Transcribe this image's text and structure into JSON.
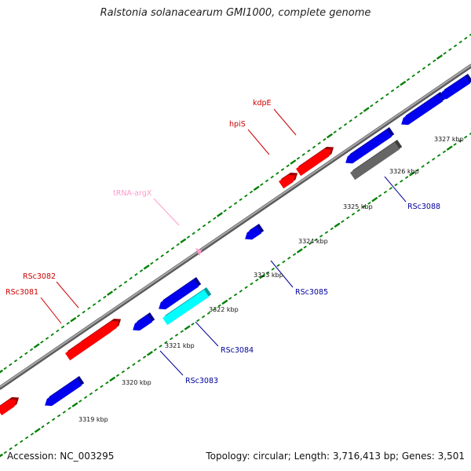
{
  "title": "Ralstonia solanacearum GMI1000, complete genome",
  "footer": {
    "accession": "Accession: NC_003295",
    "summary": "Topology: circular; Length: 3,716,413 bp; Genes: 3,501"
  },
  "colors": {
    "forward_gene": "#ff0000",
    "reverse_gene": "#0000ee",
    "highlight_gene": "#00ffff",
    "other_feature": "#666666",
    "trna": "#ff99cc",
    "backbone": "#888888",
    "dots": "#008000",
    "forward_label": "#cc0000",
    "reverse_label": "#000099"
  },
  "ticks": [
    "3319 kbp",
    "3320 kbp",
    "3321 kbp",
    "3322 kbp",
    "3323 kbp",
    "3324 kbp",
    "3325 kbp",
    "3326 kbp",
    "3327 kbp"
  ],
  "gene_labels": {
    "RSc3081": "RSc3081",
    "RSc3082": "RSc3082",
    "RSc3083": "RSc3083",
    "RSc3084": "RSc3084",
    "RSc3085": "RSc3085",
    "RSc3088": "RSc3088",
    "hpiS": "hpiS",
    "kdpE": "kdpE",
    "tRNA-argX": "tRNA-argX"
  }
}
